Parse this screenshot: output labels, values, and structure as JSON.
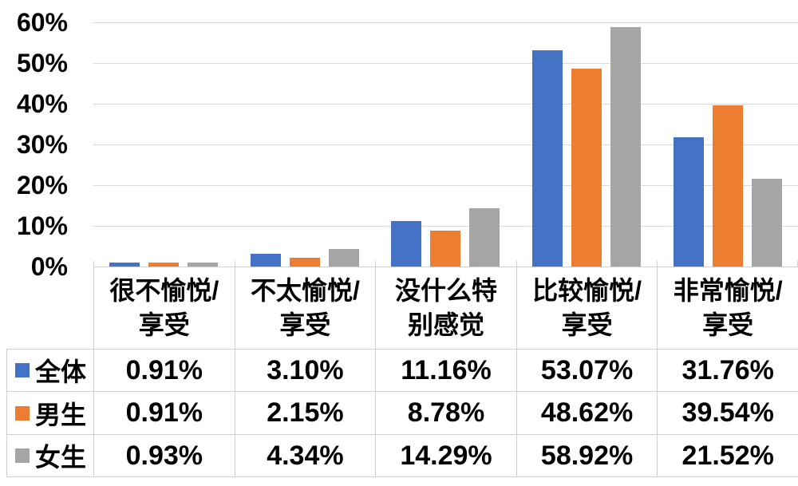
{
  "chart_data": {
    "type": "bar",
    "title": "",
    "categories": [
      "很不愉悦/享受",
      "不太愉悦/享受",
      "没什么特别感觉",
      "比较愉悦/享受",
      "非常愉悦/享受"
    ],
    "category_display_lines": [
      [
        "很不愉悦/",
        "享受"
      ],
      [
        "不太愉悦/",
        "享受"
      ],
      [
        "没什么特",
        "别感觉"
      ],
      [
        "比较愉悦/",
        "享受"
      ],
      [
        "非常愉悦/",
        "享受"
      ]
    ],
    "series": [
      {
        "name": "全体",
        "color": "#4472C4",
        "values": [
          0.91,
          3.1,
          11.16,
          53.07,
          31.76
        ],
        "labels": [
          "0.91%",
          "3.10%",
          "11.16%",
          "53.07%",
          "31.76%"
        ]
      },
      {
        "name": "男生",
        "color": "#ED7D31",
        "values": [
          0.91,
          2.15,
          8.78,
          48.62,
          39.54
        ],
        "labels": [
          "0.91%",
          "2.15%",
          "8.78%",
          "48.62%",
          "39.54%"
        ]
      },
      {
        "name": "女生",
        "color": "#A5A5A5",
        "values": [
          0.93,
          4.34,
          14.29,
          58.92,
          21.52
        ],
        "labels": [
          "0.93%",
          "4.34%",
          "14.29%",
          "58.92%",
          "21.52%"
        ]
      }
    ],
    "y_axis": {
      "min": 0,
      "max": 60,
      "step": 10,
      "tick_labels": [
        "60%",
        "50%",
        "40%",
        "30%",
        "20%",
        "10%",
        "0%"
      ]
    },
    "grid": true,
    "legend_position": "data-table-row-headers",
    "colors": {
      "grid_line": "#D9D9D9",
      "table_border": "#CFCFCF",
      "text": "#000000",
      "background": "#FFFFFF"
    }
  }
}
